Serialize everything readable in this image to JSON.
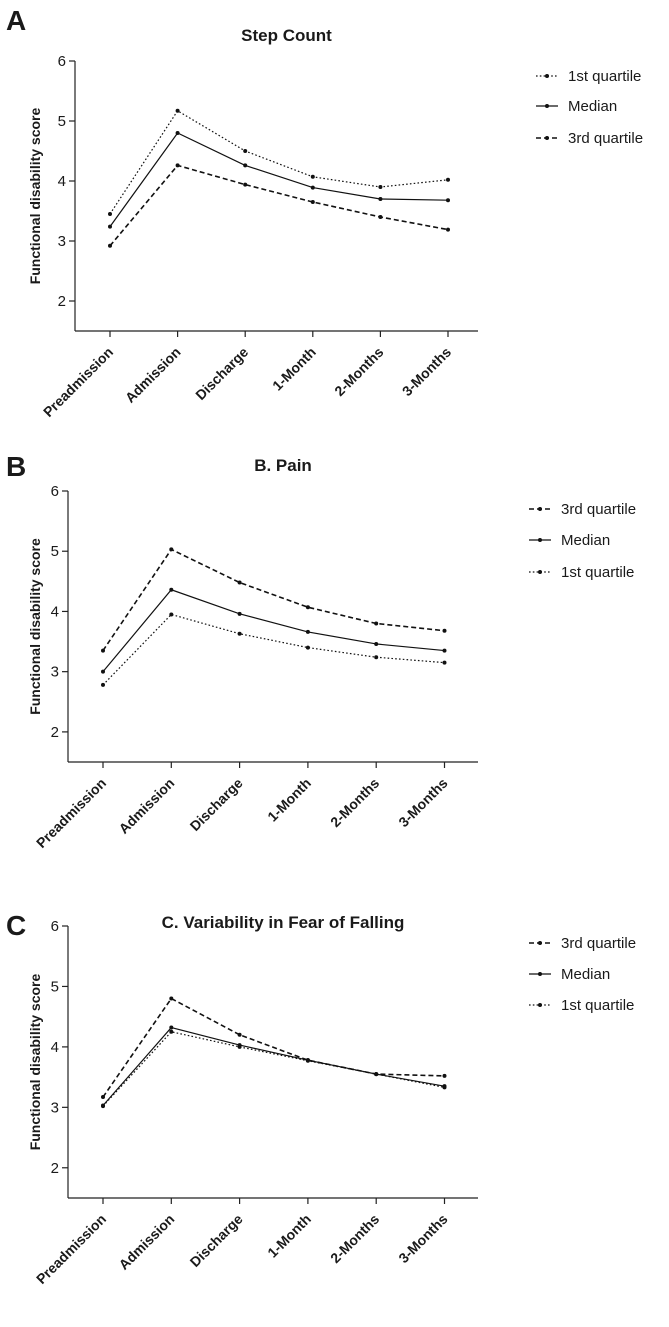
{
  "chart_data": [
    {
      "type": "line",
      "panel": "A",
      "title": "Step Count",
      "xlabel": "",
      "ylabel": "Functional disability score",
      "ylim": [
        1.5,
        6
      ],
      "yticks": [
        2,
        3,
        4,
        5,
        6
      ],
      "categories": [
        "Preadmission",
        "Admission",
        "Discharge",
        "1-Month",
        "2-Months",
        "3-Months"
      ],
      "legend_position": "right",
      "series": [
        {
          "name": "1st quartile",
          "style": "dotted",
          "values": [
            3.45,
            5.17,
            4.5,
            4.07,
            3.9,
            4.02
          ]
        },
        {
          "name": "Median",
          "style": "solid",
          "values": [
            3.24,
            4.8,
            4.26,
            3.89,
            3.7,
            3.68
          ]
        },
        {
          "name": "3rd quartile",
          "style": "dashed",
          "values": [
            2.92,
            4.26,
            3.94,
            3.65,
            3.4,
            3.19
          ]
        }
      ]
    },
    {
      "type": "line",
      "panel": "B",
      "title": "B. Pain",
      "xlabel": "",
      "ylabel": "Functional disability score",
      "ylim": [
        1.5,
        6
      ],
      "yticks": [
        2,
        3,
        4,
        5,
        6
      ],
      "categories": [
        "Preadmission",
        "Admission",
        "Discharge",
        "1-Month",
        "2-Months",
        "3-Months"
      ],
      "legend_position": "right",
      "series": [
        {
          "name": "3rd quartile",
          "style": "dashed",
          "values": [
            3.35,
            5.03,
            4.48,
            4.07,
            3.8,
            3.68
          ]
        },
        {
          "name": "Median",
          "style": "solid",
          "values": [
            3.0,
            4.36,
            3.96,
            3.66,
            3.46,
            3.35
          ]
        },
        {
          "name": "1st quartile",
          "style": "dotted",
          "values": [
            2.78,
            3.95,
            3.63,
            3.4,
            3.24,
            3.15
          ]
        }
      ]
    },
    {
      "type": "line",
      "panel": "C",
      "title": "C. Variability in Fear of Falling",
      "xlabel": "",
      "ylabel": "Functional disability score",
      "ylim": [
        1.5,
        6
      ],
      "yticks": [
        2,
        3,
        4,
        5,
        6
      ],
      "categories": [
        "Preadmission",
        "Admission",
        "Discharge",
        "1-Month",
        "2-Months",
        "3-Months"
      ],
      "legend_position": "right",
      "series": [
        {
          "name": "3rd quartile",
          "style": "dashed",
          "values": [
            3.17,
            4.8,
            4.2,
            3.78,
            3.55,
            3.52
          ]
        },
        {
          "name": "Median",
          "style": "solid",
          "values": [
            3.03,
            4.32,
            4.03,
            3.78,
            3.55,
            3.35
          ]
        },
        {
          "name": "1st quartile",
          "style": "dotted",
          "values": [
            3.02,
            4.25,
            4.0,
            3.77,
            3.55,
            3.33
          ]
        }
      ]
    }
  ]
}
